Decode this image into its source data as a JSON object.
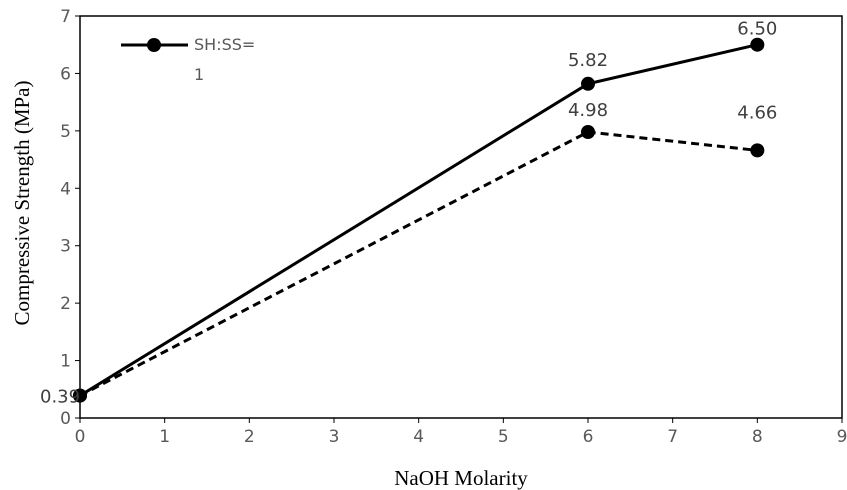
{
  "chart_data": {
    "type": "line",
    "xlabel": "NaOH Molarity",
    "ylabel": "Compressive Strength (MPa)",
    "xlim": [
      0,
      9
    ],
    "ylim": [
      0,
      7
    ],
    "x_ticks": [
      "0",
      "1",
      "2",
      "3",
      "4",
      "5",
      "6",
      "7",
      "8",
      "9"
    ],
    "y_ticks": [
      "0",
      "1",
      "2",
      "3",
      "4",
      "5",
      "6",
      "7"
    ],
    "grid": false,
    "legend_position": "top-left",
    "series": [
      {
        "name": "SH:SS=1",
        "line_style": "solid",
        "color": "#000000",
        "x": [
          0,
          6,
          8
        ],
        "y": [
          0.39,
          5.82,
          6.5
        ],
        "labels": [
          "0.39",
          "5.82",
          "6.50"
        ]
      },
      {
        "line_style": "dashed",
        "color": "#000000",
        "x": [
          0,
          6,
          8
        ],
        "y": [
          0.39,
          4.98,
          4.66
        ],
        "labels": [
          "",
          "4.98",
          "4.66"
        ]
      }
    ],
    "legend": {
      "text_line1": "SH:SS=",
      "text_line2": "1"
    }
  }
}
